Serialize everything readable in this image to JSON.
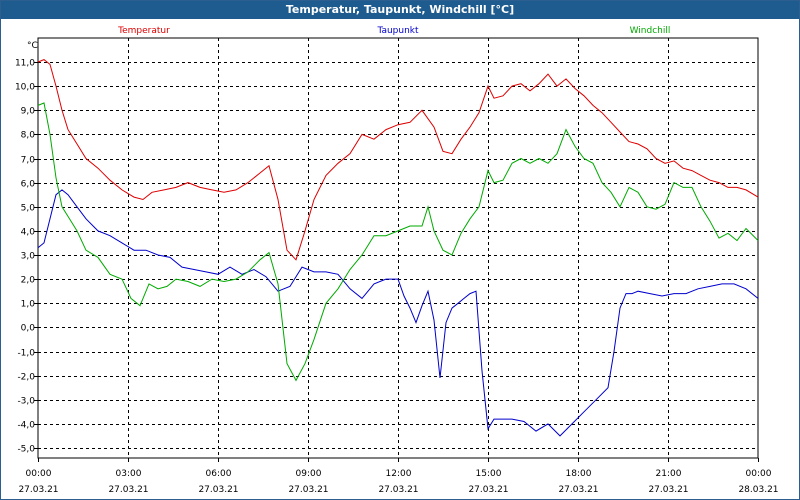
{
  "chart_data": {
    "type": "line",
    "title": "Temperatur, Taupunkt, Windchill [°C]",
    "ylabel": "°C",
    "ylim": [
      -5.5,
      12
    ],
    "yticks": [
      "11,0",
      "10,0",
      "9,0",
      "8,0",
      "7,0",
      "6,0",
      "5,0",
      "4,0",
      "3,0",
      "2,0",
      "1,0",
      "0,0",
      "-1,0",
      "-2,0",
      "-3,0",
      "-4,0",
      "-5,0"
    ],
    "ytick_values": [
      11,
      10,
      9,
      8,
      7,
      6,
      5,
      4,
      3,
      2,
      1,
      0,
      -1,
      -2,
      -3,
      -4,
      -5
    ],
    "xlim": [
      0,
      24
    ],
    "xticks": [
      {
        "time": "00:00",
        "date": "27.03.21"
      },
      {
        "time": "03:00",
        "date": "27.03.21"
      },
      {
        "time": "06:00",
        "date": "27.03.21"
      },
      {
        "time": "09:00",
        "date": "27.03.21"
      },
      {
        "time": "12:00",
        "date": "27.03.21"
      },
      {
        "time": "15:00",
        "date": "27.03.21"
      },
      {
        "time": "18:00",
        "date": "27.03.21"
      },
      {
        "time": "21:00",
        "date": "27.03.21"
      },
      {
        "time": "00:00",
        "date": "28.03.21"
      }
    ],
    "grid": true,
    "series": [
      {
        "name": "Temperatur",
        "color": "#dd0000",
        "x": [
          0,
          0.2,
          0.4,
          0.6,
          0.8,
          1.0,
          1.3,
          1.6,
          2.0,
          2.4,
          2.8,
          3.2,
          3.5,
          3.8,
          4.2,
          4.6,
          5.0,
          5.4,
          5.8,
          6.2,
          6.6,
          7.0,
          7.4,
          7.7,
          8.0,
          8.3,
          8.6,
          8.9,
          9.2,
          9.6,
          10.0,
          10.4,
          10.8,
          11.2,
          11.6,
          12.0,
          12.4,
          12.8,
          13.2,
          13.5,
          13.8,
          14.1,
          14.4,
          14.7,
          15.0,
          15.2,
          15.5,
          15.8,
          16.1,
          16.4,
          16.7,
          17.0,
          17.3,
          17.6,
          17.9,
          18.2,
          18.5,
          18.8,
          19.1,
          19.4,
          19.7,
          20.0,
          20.3,
          20.6,
          20.9,
          21.2,
          21.5,
          21.8,
          22.1,
          22.4,
          22.7,
          23.0,
          23.3,
          23.6,
          24.0
        ],
        "y": [
          11.0,
          11.1,
          10.9,
          10.0,
          9.0,
          8.2,
          7.6,
          7.0,
          6.6,
          6.1,
          5.7,
          5.4,
          5.3,
          5.6,
          5.7,
          5.8,
          6.0,
          5.8,
          5.7,
          5.6,
          5.7,
          6.0,
          6.4,
          6.7,
          5.3,
          3.2,
          2.8,
          4.0,
          5.3,
          6.3,
          6.8,
          7.2,
          8.0,
          7.8,
          8.2,
          8.4,
          8.5,
          9.0,
          8.3,
          7.3,
          7.2,
          7.8,
          8.3,
          8.9,
          10.0,
          9.5,
          9.6,
          10.0,
          10.1,
          9.8,
          10.1,
          10.5,
          10.0,
          10.3,
          9.9,
          9.6,
          9.2,
          8.9,
          8.5,
          8.1,
          7.7,
          7.6,
          7.4,
          7.0,
          6.8,
          6.9,
          6.6,
          6.5,
          6.3,
          6.1,
          6.0,
          5.8,
          5.8,
          5.7,
          5.4
        ]
      },
      {
        "name": "Taupunkt",
        "color": "#0000cc",
        "x": [
          0,
          0.2,
          0.4,
          0.6,
          0.8,
          1.0,
          1.3,
          1.6,
          2.0,
          2.4,
          2.8,
          3.2,
          3.6,
          4.0,
          4.4,
          4.8,
          5.2,
          5.6,
          6.0,
          6.4,
          6.8,
          7.2,
          7.6,
          8.0,
          8.4,
          8.8,
          9.2,
          9.6,
          10.0,
          10.4,
          10.8,
          11.2,
          11.6,
          12.0,
          12.2,
          12.4,
          12.6,
          12.8,
          13.0,
          13.2,
          13.4,
          13.6,
          13.8,
          14.0,
          14.2,
          14.4,
          14.6,
          14.8,
          15.0,
          15.2,
          15.4,
          15.8,
          16.2,
          16.6,
          17.0,
          17.4,
          17.8,
          18.2,
          18.6,
          19.0,
          19.2,
          19.4,
          19.6,
          19.8,
          20.0,
          20.4,
          20.8,
          21.2,
          21.6,
          22.0,
          22.4,
          22.8,
          23.2,
          23.6,
          24.0
        ],
        "y": [
          3.3,
          3.5,
          4.5,
          5.5,
          5.7,
          5.5,
          5.0,
          4.5,
          4.0,
          3.8,
          3.5,
          3.2,
          3.2,
          3.0,
          2.9,
          2.5,
          2.4,
          2.3,
          2.2,
          2.5,
          2.2,
          2.4,
          2.1,
          1.5,
          1.7,
          2.5,
          2.3,
          2.3,
          2.2,
          1.6,
          1.2,
          1.8,
          2.0,
          2.0,
          1.3,
          0.8,
          0.2,
          0.9,
          1.5,
          0.3,
          -2.1,
          0.2,
          0.8,
          1.0,
          1.2,
          1.4,
          1.5,
          -1.8,
          -4.2,
          -3.8,
          -3.8,
          -3.8,
          -3.9,
          -4.3,
          -4.0,
          -4.5,
          -4.0,
          -3.5,
          -3.0,
          -2.5,
          -1.0,
          0.8,
          1.4,
          1.4,
          1.5,
          1.4,
          1.3,
          1.4,
          1.4,
          1.6,
          1.7,
          1.8,
          1.8,
          1.6,
          1.2
        ]
      },
      {
        "name": "Windchill",
        "color": "#00aa00",
        "x": [
          0,
          0.2,
          0.4,
          0.6,
          0.8,
          1.0,
          1.3,
          1.6,
          2.0,
          2.4,
          2.8,
          3.1,
          3.4,
          3.7,
          4.0,
          4.3,
          4.6,
          5.0,
          5.4,
          5.8,
          6.2,
          6.6,
          7.0,
          7.4,
          7.7,
          8.0,
          8.3,
          8.6,
          8.9,
          9.2,
          9.6,
          10.0,
          10.4,
          10.8,
          11.2,
          11.6,
          12.0,
          12.4,
          12.8,
          13.0,
          13.2,
          13.5,
          13.8,
          14.1,
          14.4,
          14.7,
          15.0,
          15.2,
          15.5,
          15.8,
          16.1,
          16.4,
          16.7,
          17.0,
          17.3,
          17.6,
          17.9,
          18.2,
          18.5,
          18.8,
          19.1,
          19.4,
          19.7,
          20.0,
          20.3,
          20.6,
          20.9,
          21.2,
          21.5,
          21.8,
          22.1,
          22.4,
          22.7,
          23.0,
          23.3,
          23.6,
          24.0
        ],
        "y": [
          9.2,
          9.3,
          8.0,
          6.2,
          5.0,
          4.6,
          4.0,
          3.2,
          2.9,
          2.2,
          2.0,
          1.2,
          0.9,
          1.8,
          1.6,
          1.7,
          2.0,
          1.9,
          1.7,
          2.0,
          1.9,
          2.0,
          2.3,
          2.8,
          3.1,
          1.8,
          -1.5,
          -2.2,
          -1.5,
          -0.5,
          1.0,
          1.6,
          2.4,
          3.0,
          3.8,
          3.8,
          4.0,
          4.2,
          4.2,
          5.0,
          4.0,
          3.2,
          3.0,
          3.9,
          4.5,
          5.0,
          6.5,
          6.0,
          6.1,
          6.8,
          7.0,
          6.8,
          7.0,
          6.8,
          7.2,
          8.2,
          7.5,
          7.0,
          6.8,
          6.0,
          5.6,
          5.0,
          5.8,
          5.6,
          5.0,
          4.9,
          5.1,
          6.0,
          5.8,
          5.8,
          5.0,
          4.4,
          3.7,
          3.9,
          3.6,
          4.1,
          3.6
        ]
      }
    ]
  }
}
